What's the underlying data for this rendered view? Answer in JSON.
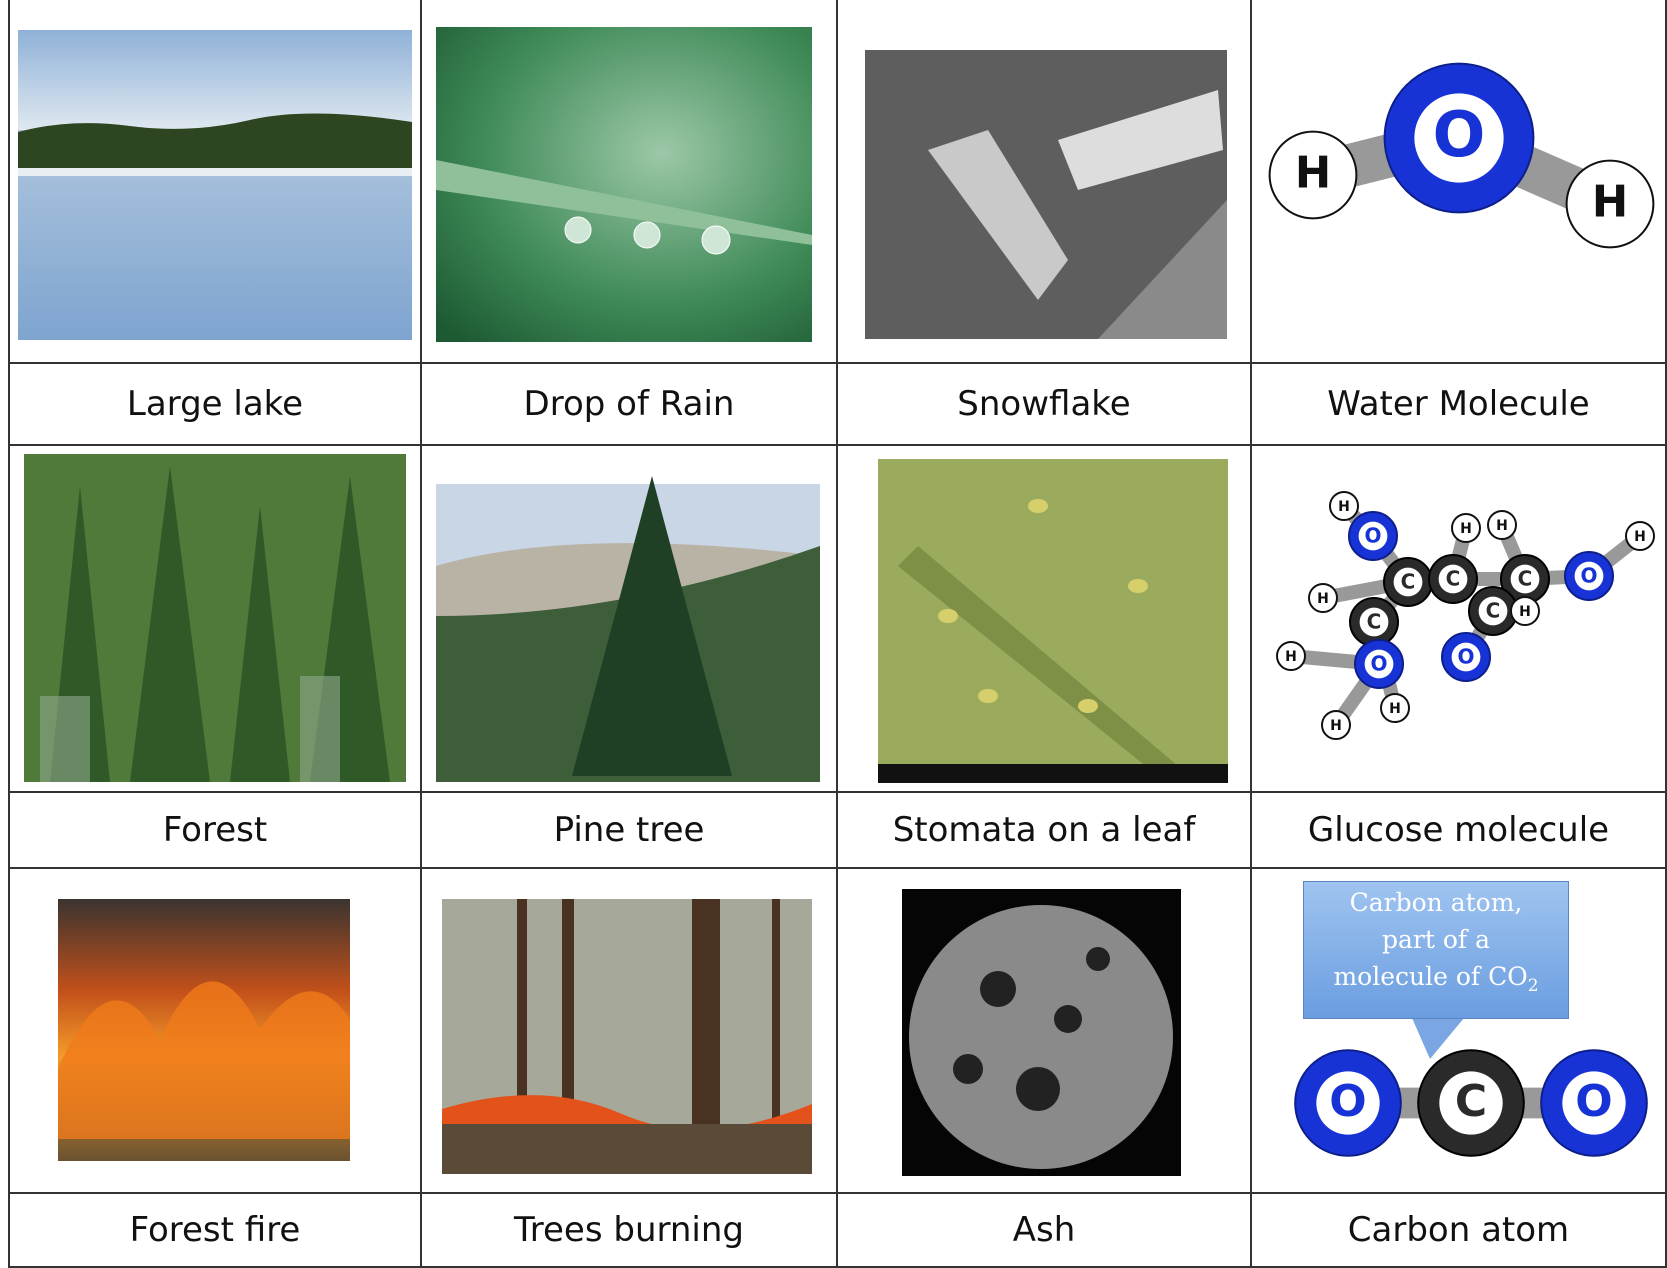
{
  "table": {
    "rows": [
      {
        "labels": [
          "Large lake",
          "Drop of Rain",
          "Snowflake",
          "Water Molecule"
        ]
      },
      {
        "labels": [
          "Forest",
          "Pine tree",
          "Stomata on a leaf",
          "Glucose molecule"
        ]
      },
      {
        "labels": [
          "Forest fire",
          "Trees burning",
          "Ash",
          "Carbon atom"
        ]
      }
    ]
  },
  "molecules": {
    "water": [
      "H",
      "O",
      "H"
    ],
    "glucose": [
      "H",
      "O",
      "C",
      "C",
      "H",
      "H",
      "C",
      "O",
      "H",
      "C",
      "H",
      "H",
      "C",
      "O",
      "O",
      "H",
      "H",
      "H"
    ],
    "co2": [
      "O",
      "C",
      "O"
    ]
  },
  "callout": {
    "lines": [
      "Carbon atom,",
      "part of a",
      "molecule of CO"
    ],
    "subscript": "2"
  }
}
